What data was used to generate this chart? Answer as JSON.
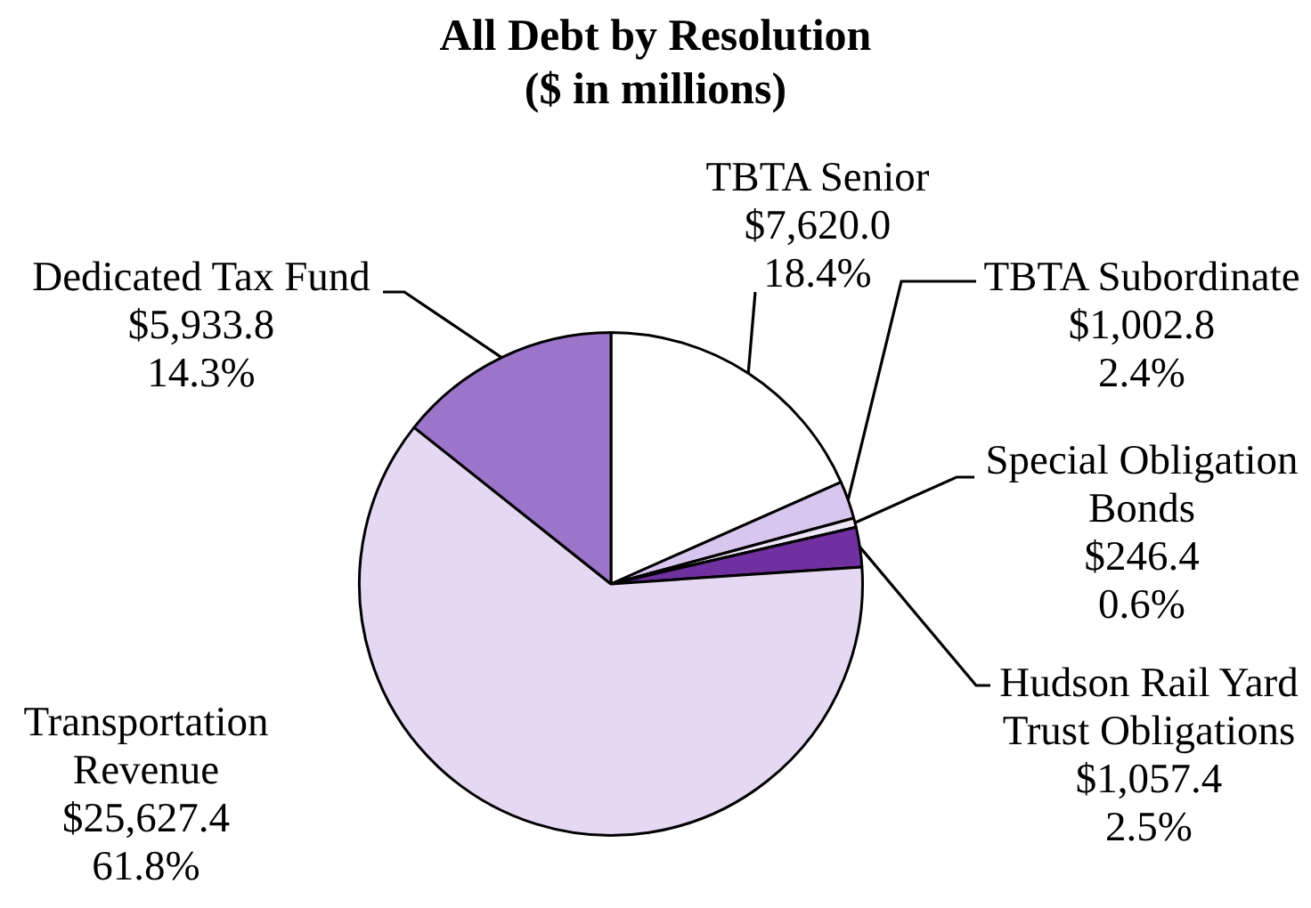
{
  "chart_data": {
    "type": "pie",
    "title": "All Debt by Resolution\n($ in millions)",
    "categories": [
      "TBTA Senior",
      "TBTA Subordinate",
      "Special Obligation Bonds",
      "Hudson Rail Yard Trust Obligations",
      "Transportation Revenue",
      "Dedicated Tax Fund"
    ],
    "values": [
      7620.0,
      1002.8,
      246.4,
      1057.4,
      25627.4,
      5933.8
    ],
    "value_labels": [
      "$7,620.0\n18.4%",
      "$1,002.8\n2.4%",
      "$246.4\n0.6%",
      "$1,057.4\n2.5%",
      "$25,627.4\n61.8%",
      "$5,933.8\n14.3%"
    ],
    "colors": [
      "#ffffff",
      "#d8c6ee",
      "#eee6f7",
      "#7030a0",
      "#e4d8f2",
      "#9c74c9"
    ],
    "legend": false
  }
}
